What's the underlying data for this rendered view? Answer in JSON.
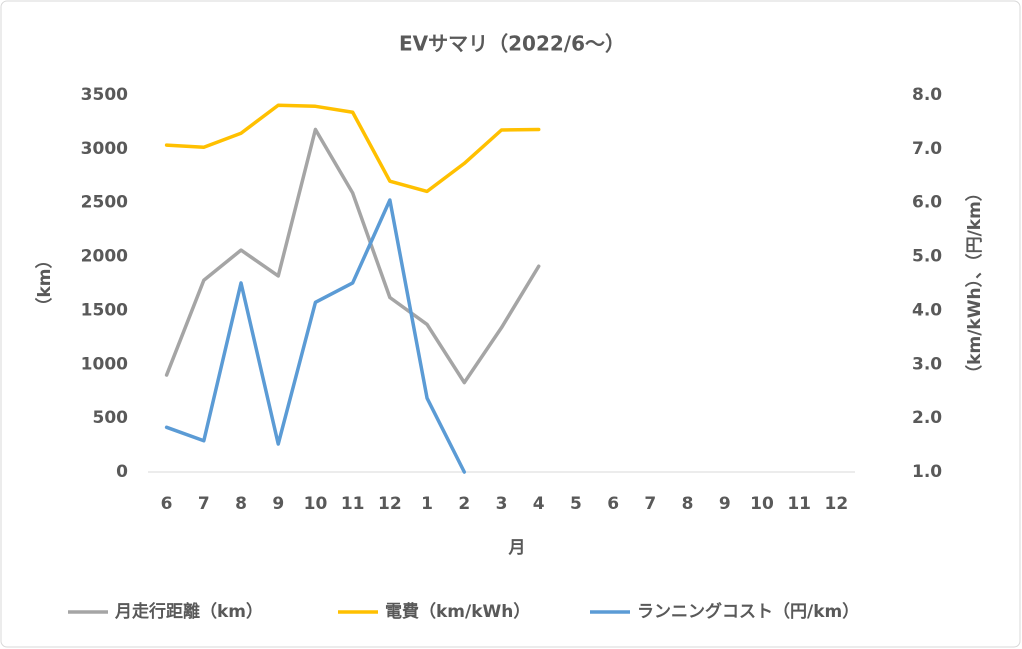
{
  "chart_data": {
    "type": "line",
    "title": "EVサマリ（2022/6～）",
    "x_label": "月",
    "y_label": "（km）",
    "y2_label": "（km/kWh）、（円/km）",
    "categories": [
      "6",
      "7",
      "8",
      "9",
      "10",
      "11",
      "12",
      "1",
      "2",
      "3",
      "4",
      "5",
      "6",
      "7",
      "8",
      "9",
      "10",
      "11",
      "12"
    ],
    "series": [
      {
        "name": "月走行距離（km）",
        "color": "#a5a5a5",
        "values": [
          900,
          1780,
          2060,
          1820,
          3180,
          2590,
          1620,
          1370,
          830,
          1340,
          1910,
          null,
          null,
          null,
          null,
          null,
          null,
          null,
          null
        ]
      },
      {
        "name": "電費（km/kWh）",
        "color": "#ffc000",
        "axis": "y2",
        "values": [
          7.07,
          7.03,
          7.29,
          7.81,
          7.79,
          7.68,
          6.4,
          6.21,
          6.73,
          7.35,
          7.36,
          null,
          null,
          null,
          null,
          null,
          null,
          null,
          null
        ]
      },
      {
        "name": "ランニングコスト（円/km）",
        "color": "#5b9bd5",
        "axis": "y2",
        "values": [
          1.83,
          1.58,
          4.51,
          1.52,
          4.15,
          4.51,
          6.05,
          2.37,
          1.0,
          null,
          null,
          null,
          null,
          null,
          null,
          null,
          null,
          null,
          null
        ]
      }
    ],
    "ylim": [
      0,
      3500
    ],
    "yticks": [
      0,
      500,
      1000,
      1500,
      2000,
      2500,
      3000,
      3500
    ],
    "y2lim": [
      1,
      8
    ],
    "y2ticks": [
      {
        "value": 1,
        "label": "1.0"
      },
      {
        "value": 2,
        "label": "2.0"
      },
      {
        "value": 3,
        "label": "3.0"
      },
      {
        "value": 4,
        "label": "4.0"
      },
      {
        "value": 5,
        "label": "5.0"
      },
      {
        "value": 6,
        "label": "6.0"
      },
      {
        "value": 7,
        "label": "7.0"
      },
      {
        "value": 8,
        "label": "8.0"
      }
    ],
    "grid": false,
    "legend": "bottom"
  }
}
